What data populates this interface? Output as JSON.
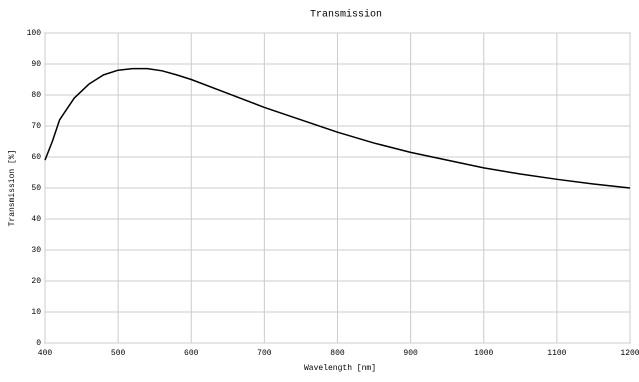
{
  "chart_data": {
    "type": "line",
    "title": "Transmission",
    "x_label": "Wavelength [nm]",
    "y_label": "Transmission [%]",
    "x": [
      400,
      410,
      420,
      440,
      460,
      480,
      500,
      520,
      540,
      560,
      580,
      600,
      650,
      700,
      750,
      800,
      850,
      900,
      950,
      1000,
      1050,
      1100,
      1150,
      1200
    ],
    "series": [
      {
        "color": "#000000",
        "values": [
          59,
          65,
          72,
          79,
          83.5,
          86.5,
          88,
          88.5,
          88.5,
          87.8,
          86.5,
          85,
          80.5,
          76,
          72,
          68,
          64.5,
          61.5,
          59,
          56.5,
          54.5,
          52.8,
          51.3,
          50
        ]
      }
    ],
    "xlim": [
      400,
      1200
    ],
    "xticks": [
      400,
      500,
      600,
      700,
      800,
      900,
      1000,
      1100,
      1200
    ],
    "ylim": [
      0,
      100
    ],
    "yticks": [
      0,
      10,
      20,
      30,
      40,
      50,
      60,
      70,
      80,
      90,
      100
    ],
    "grid": true
  }
}
